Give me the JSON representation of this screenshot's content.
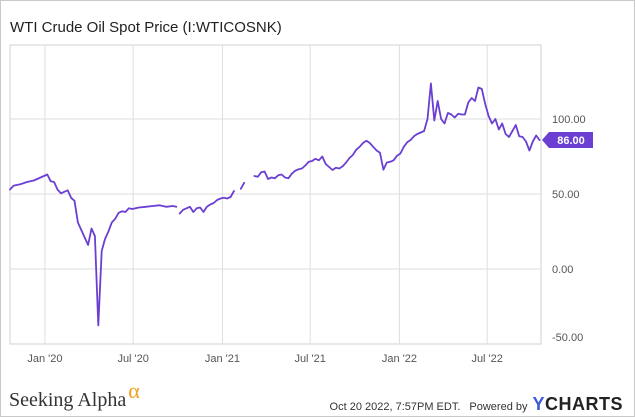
{
  "chart_data": {
    "type": "line",
    "title": "WTI Crude Oil Spot Price (I:WTICOSNK)",
    "xlabel": "",
    "ylabel": "",
    "ylim": [
      -50,
      150
    ],
    "xlim": [
      "2019-10-21",
      "2022-10-20"
    ],
    "y_ticks": [
      {
        "value": 100,
        "label": "100.00"
      },
      {
        "value": 50,
        "label": "50.00"
      },
      {
        "value": 0,
        "label": "0.00"
      },
      {
        "value": -50,
        "label": "-50.00"
      }
    ],
    "x_ticks": [
      {
        "date": "2020-01-01",
        "label": "Jan '20"
      },
      {
        "date": "2020-07-01",
        "label": "Jul '20"
      },
      {
        "date": "2021-01-01",
        "label": "Jan '21"
      },
      {
        "date": "2021-07-01",
        "label": "Jul '21"
      },
      {
        "date": "2022-01-01",
        "label": "Jan '22"
      },
      {
        "date": "2022-07-01",
        "label": "Jul '22"
      }
    ],
    "grid": true,
    "series_color": "#6a3fd1",
    "last_value_label": "86.00",
    "segments": [
      [
        {
          "x": "2019-10-21",
          "y": 53
        },
        {
          "x": "2019-10-28",
          "y": 55.5
        },
        {
          "x": "2019-11-11",
          "y": 56.5
        },
        {
          "x": "2019-11-25",
          "y": 58
        },
        {
          "x": "2019-12-09",
          "y": 59
        },
        {
          "x": "2019-12-23",
          "y": 61
        },
        {
          "x": "2020-01-06",
          "y": 63
        },
        {
          "x": "2020-01-13",
          "y": 58.5
        },
        {
          "x": "2020-01-20",
          "y": 58
        },
        {
          "x": "2020-01-27",
          "y": 53
        },
        {
          "x": "2020-02-03",
          "y": 50.5
        },
        {
          "x": "2020-02-17",
          "y": 52.5
        },
        {
          "x": "2020-02-24",
          "y": 47.5
        },
        {
          "x": "2020-03-02",
          "y": 45.5
        },
        {
          "x": "2020-03-09",
          "y": 31
        },
        {
          "x": "2020-03-16",
          "y": 26
        },
        {
          "x": "2020-03-23",
          "y": 21
        },
        {
          "x": "2020-03-30",
          "y": 16
        },
        {
          "x": "2020-04-06",
          "y": 27
        },
        {
          "x": "2020-04-13",
          "y": 22
        },
        {
          "x": "2020-04-20",
          "y": -37.6
        },
        {
          "x": "2020-04-27",
          "y": 12
        },
        {
          "x": "2020-05-04",
          "y": 20
        },
        {
          "x": "2020-05-11",
          "y": 25
        },
        {
          "x": "2020-05-18",
          "y": 31
        },
        {
          "x": "2020-05-25",
          "y": 33.5
        },
        {
          "x": "2020-06-01",
          "y": 37.5
        },
        {
          "x": "2020-06-08",
          "y": 38.5
        },
        {
          "x": "2020-06-15",
          "y": 38
        },
        {
          "x": "2020-06-22",
          "y": 40.5
        },
        {
          "x": "2020-06-29",
          "y": 40
        },
        {
          "x": "2020-07-13",
          "y": 41
        },
        {
          "x": "2020-07-27",
          "y": 41.5
        },
        {
          "x": "2020-08-10",
          "y": 42
        },
        {
          "x": "2020-08-24",
          "y": 42.5
        },
        {
          "x": "2020-09-07",
          "y": 41.5
        },
        {
          "x": "2020-09-21",
          "y": 42
        },
        {
          "x": "2020-09-28",
          "y": 41.5
        }
      ],
      [
        {
          "x": "2020-10-05",
          "y": 37
        },
        {
          "x": "2020-10-12",
          "y": 39.5
        },
        {
          "x": "2020-10-19",
          "y": 40.5
        },
        {
          "x": "2020-10-26",
          "y": 41.5
        },
        {
          "x": "2020-11-02",
          "y": 38
        },
        {
          "x": "2020-11-09",
          "y": 40.5
        },
        {
          "x": "2020-11-16",
          "y": 41
        },
        {
          "x": "2020-11-23",
          "y": 38
        },
        {
          "x": "2020-11-30",
          "y": 41.5
        },
        {
          "x": "2020-12-07",
          "y": 43
        },
        {
          "x": "2020-12-14",
          "y": 44
        },
        {
          "x": "2020-12-21",
          "y": 46
        },
        {
          "x": "2020-12-28",
          "y": 47
        },
        {
          "x": "2021-01-04",
          "y": 47.5
        },
        {
          "x": "2021-01-11",
          "y": 47
        },
        {
          "x": "2021-01-18",
          "y": 48
        },
        {
          "x": "2021-01-25",
          "y": 52
        }
      ],
      [
        {
          "x": "2021-02-08",
          "y": 53.5
        },
        {
          "x": "2021-02-15",
          "y": 57.5
        }
      ],
      [
        {
          "x": "2021-03-08",
          "y": 62
        },
        {
          "x": "2021-03-15",
          "y": 61.5
        },
        {
          "x": "2021-03-22",
          "y": 64.5
        },
        {
          "x": "2021-03-29",
          "y": 65
        },
        {
          "x": "2021-04-05",
          "y": 60
        },
        {
          "x": "2021-04-12",
          "y": 61
        },
        {
          "x": "2021-04-19",
          "y": 60.5
        },
        {
          "x": "2021-04-26",
          "y": 62.5
        },
        {
          "x": "2021-05-03",
          "y": 63
        },
        {
          "x": "2021-05-10",
          "y": 61
        },
        {
          "x": "2021-05-17",
          "y": 60.5
        },
        {
          "x": "2021-05-24",
          "y": 63.5
        },
        {
          "x": "2021-05-31",
          "y": 65.5
        },
        {
          "x": "2021-06-07",
          "y": 66.5
        },
        {
          "x": "2021-06-14",
          "y": 67
        },
        {
          "x": "2021-06-21",
          "y": 69
        },
        {
          "x": "2021-06-28",
          "y": 71.5
        },
        {
          "x": "2021-07-05",
          "y": 72
        },
        {
          "x": "2021-07-12",
          "y": 73.5
        },
        {
          "x": "2021-07-19",
          "y": 72.5
        },
        {
          "x": "2021-07-26",
          "y": 75
        },
        {
          "x": "2021-08-02",
          "y": 70
        },
        {
          "x": "2021-08-09",
          "y": 68
        },
        {
          "x": "2021-08-16",
          "y": 66
        },
        {
          "x": "2021-08-23",
          "y": 67.5
        },
        {
          "x": "2021-08-30",
          "y": 67
        },
        {
          "x": "2021-09-06",
          "y": 68.5
        },
        {
          "x": "2021-09-13",
          "y": 71
        },
        {
          "x": "2021-09-20",
          "y": 74
        },
        {
          "x": "2021-09-27",
          "y": 76
        },
        {
          "x": "2021-10-04",
          "y": 79.5
        },
        {
          "x": "2021-10-11",
          "y": 81.5
        },
        {
          "x": "2021-10-18",
          "y": 84
        },
        {
          "x": "2021-10-25",
          "y": 85.5
        },
        {
          "x": "2021-11-01",
          "y": 84
        },
        {
          "x": "2021-11-08",
          "y": 81.5
        },
        {
          "x": "2021-11-15",
          "y": 79
        },
        {
          "x": "2021-11-22",
          "y": 77.5
        },
        {
          "x": "2021-11-29",
          "y": 66.2
        },
        {
          "x": "2021-12-06",
          "y": 71
        },
        {
          "x": "2021-12-13",
          "y": 71.5
        },
        {
          "x": "2021-12-20",
          "y": 72.5
        },
        {
          "x": "2021-12-27",
          "y": 75.5
        },
        {
          "x": "2022-01-03",
          "y": 77
        },
        {
          "x": "2022-01-10",
          "y": 81.5
        },
        {
          "x": "2022-01-17",
          "y": 84.5
        },
        {
          "x": "2022-01-24",
          "y": 86
        },
        {
          "x": "2022-01-31",
          "y": 88.5
        },
        {
          "x": "2022-02-07",
          "y": 90
        },
        {
          "x": "2022-02-14",
          "y": 91
        },
        {
          "x": "2022-02-21",
          "y": 92
        },
        {
          "x": "2022-02-28",
          "y": 100
        },
        {
          "x": "2022-03-07",
          "y": 123.7
        },
        {
          "x": "2022-03-14",
          "y": 99
        },
        {
          "x": "2022-03-21",
          "y": 112
        },
        {
          "x": "2022-03-28",
          "y": 100
        },
        {
          "x": "2022-04-04",
          "y": 97
        },
        {
          "x": "2022-04-11",
          "y": 104
        },
        {
          "x": "2022-04-18",
          "y": 103
        },
        {
          "x": "2022-04-25",
          "y": 101
        },
        {
          "x": "2022-05-02",
          "y": 103.5
        },
        {
          "x": "2022-05-09",
          "y": 103
        },
        {
          "x": "2022-05-16",
          "y": 103
        },
        {
          "x": "2022-05-23",
          "y": 111
        },
        {
          "x": "2022-05-30",
          "y": 114
        },
        {
          "x": "2022-06-06",
          "y": 112
        },
        {
          "x": "2022-06-13",
          "y": 121
        },
        {
          "x": "2022-06-20",
          "y": 120
        },
        {
          "x": "2022-06-27",
          "y": 110
        },
        {
          "x": "2022-07-04",
          "y": 102
        },
        {
          "x": "2022-07-11",
          "y": 97
        },
        {
          "x": "2022-07-18",
          "y": 100
        },
        {
          "x": "2022-07-25",
          "y": 93
        },
        {
          "x": "2022-08-01",
          "y": 97
        },
        {
          "x": "2022-08-08",
          "y": 90
        },
        {
          "x": "2022-08-15",
          "y": 88
        },
        {
          "x": "2022-08-22",
          "y": 92
        },
        {
          "x": "2022-08-29",
          "y": 96
        },
        {
          "x": "2022-09-05",
          "y": 88.5
        },
        {
          "x": "2022-09-12",
          "y": 88
        },
        {
          "x": "2022-09-19",
          "y": 85
        },
        {
          "x": "2022-09-26",
          "y": 79
        },
        {
          "x": "2022-10-03",
          "y": 85
        },
        {
          "x": "2022-10-10",
          "y": 89
        },
        {
          "x": "2022-10-17",
          "y": 86
        }
      ]
    ]
  },
  "footer": {
    "brand": "Seeking Alpha",
    "brand_mark": "α",
    "timestamp": "Oct 20 2022, 7:57PM EDT.",
    "powered_by": "Powered by",
    "provider_y": "Y",
    "provider_rest": "CHARTS"
  }
}
